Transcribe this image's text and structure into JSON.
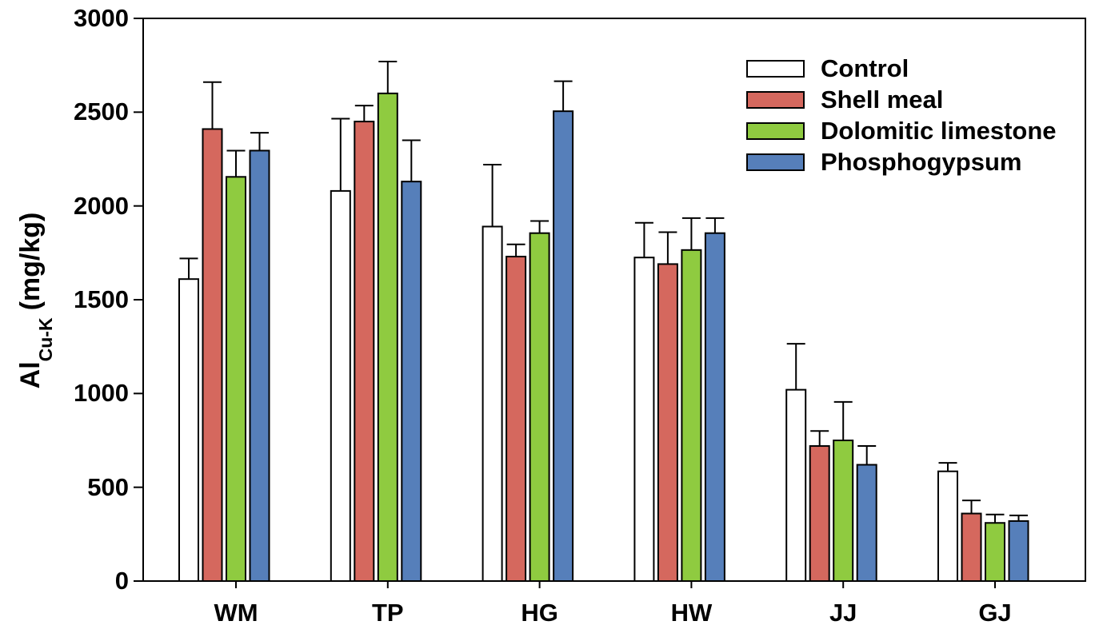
{
  "chart_data": {
    "type": "bar",
    "title": "",
    "categories": [
      "WM",
      "TP",
      "HG",
      "HW",
      "JJ",
      "GJ"
    ],
    "series": [
      {
        "name": "Control",
        "color": "#ffffff",
        "values": [
          1610,
          2080,
          1890,
          1725,
          1020,
          585
        ],
        "errors_plus": [
          110,
          385,
          330,
          185,
          245,
          45
        ]
      },
      {
        "name": "Shell meal",
        "color": "#d5685e",
        "values": [
          2410,
          2450,
          1730,
          1690,
          720,
          360
        ],
        "errors_plus": [
          250,
          85,
          65,
          170,
          80,
          70
        ]
      },
      {
        "name": "Dolomitic limestone",
        "color": "#8fcb40",
        "values": [
          2155,
          2600,
          1855,
          1765,
          750,
          310
        ],
        "errors_plus": [
          140,
          170,
          65,
          170,
          205,
          45
        ]
      },
      {
        "name": "Phosphogypsum",
        "color": "#567fba",
        "values": [
          2295,
          2130,
          2505,
          1855,
          620,
          320
        ],
        "errors_plus": [
          95,
          220,
          160,
          80,
          100,
          30
        ]
      }
    ],
    "ylabel": {
      "base": "Al",
      "subscript": "Cu-K",
      "unit": "(mg/kg)"
    },
    "xlabel": "",
    "ylim": [
      0,
      3000
    ],
    "ytick_step": 500,
    "ytick_labels": [
      "0",
      "500",
      "1000",
      "1500",
      "2000",
      "2500",
      "3000"
    ],
    "error_bars": "upper",
    "grid": false,
    "legend_position": "top-right",
    "outline_color": "#000000",
    "background_color": "#ffffff"
  }
}
